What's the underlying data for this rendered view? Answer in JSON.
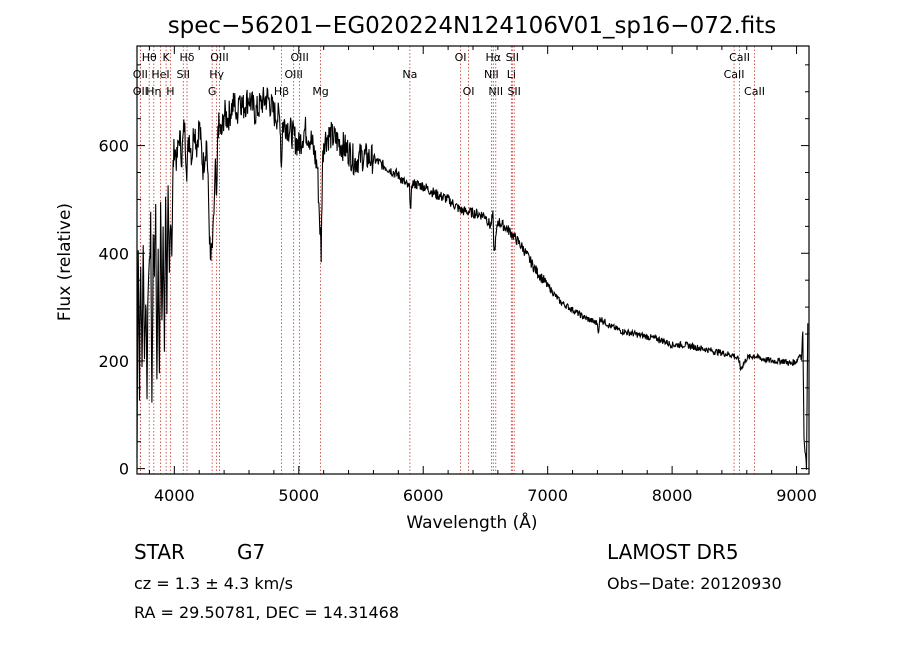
{
  "chart_data": {
    "type": "line",
    "title": "spec−56201−EG020224N124106V01_sp16−072.fits",
    "xlabel": "Wavelength (Å)",
    "ylabel": "Flux (relative)",
    "xlim": [
      3700,
      9100
    ],
    "ylim": [
      -10,
      785
    ],
    "xticks": [
      4000,
      5000,
      6000,
      7000,
      8000,
      9000
    ],
    "yticks": [
      0,
      200,
      400,
      600
    ],
    "grid": false,
    "line_color": "#000000",
    "marker_color": "#c0392b",
    "series": [
      {
        "x": [
          3700,
          3710,
          3720,
          3730,
          3740,
          3750,
          3760,
          3770,
          3780,
          3790,
          3800,
          3810,
          3820,
          3830,
          3840,
          3850,
          3860,
          3870,
          3880,
          3890,
          3900,
          3910,
          3920,
          3930,
          3940,
          3950,
          3960,
          3970,
          3980,
          3990,
          4000,
          4020,
          4040,
          4060,
          4080,
          4100,
          4120,
          4140,
          4160,
          4180,
          4200,
          4230,
          4260,
          4290,
          4310,
          4330,
          4340,
          4350,
          4380,
          4400,
          4430,
          4460,
          4490,
          4500,
          4520,
          4550,
          4600,
          4650,
          4700,
          4750,
          4800,
          4850,
          4860,
          4870,
          4900,
          4950,
          5000,
          5050,
          5100,
          5150,
          5170,
          5180,
          5190,
          5200,
          5250,
          5300,
          5350,
          5400,
          5450,
          5500,
          5600,
          5700,
          5800,
          5890,
          5900,
          5910,
          6000,
          6100,
          6200,
          6300,
          6400,
          6500,
          6540,
          6560,
          6570,
          6600,
          6700,
          6800,
          6900,
          7000,
          7100,
          7200,
          7300,
          7400,
          7410,
          7420,
          7500,
          7600,
          7700,
          7800,
          7900,
          8000,
          8100,
          8200,
          8300,
          8400,
          8500,
          8540,
          8550,
          8600,
          8660,
          8700,
          8800,
          8900,
          8950,
          9000,
          9030,
          9040,
          9050,
          9060,
          9080,
          9090
        ],
        "y": [
          20,
          420,
          150,
          380,
          180,
          430,
          200,
          330,
          150,
          350,
          380,
          450,
          120,
          420,
          380,
          470,
          160,
          400,
          180,
          500,
          250,
          450,
          220,
          520,
          300,
          500,
          350,
          480,
          410,
          560,
          600,
          570,
          620,
          580,
          640,
          560,
          620,
          580,
          640,
          600,
          640,
          560,
          610,
          380,
          420,
          560,
          480,
          640,
          620,
          660,
          650,
          670,
          680,
          640,
          700,
          670,
          690,
          660,
          680,
          690,
          660,
          650,
          560,
          640,
          640,
          620,
          600,
          630,
          610,
          560,
          450,
          400,
          560,
          610,
          620,
          610,
          600,
          590,
          570,
          580,
          575,
          560,
          545,
          520,
          480,
          530,
          525,
          510,
          500,
          480,
          475,
          470,
          450,
          470,
          400,
          460,
          440,
          410,
          370,
          340,
          310,
          295,
          280,
          270,
          250,
          280,
          265,
          255,
          250,
          245,
          240,
          230,
          230,
          225,
          220,
          215,
          210,
          200,
          185,
          205,
          210,
          205,
          200,
          200,
          195,
          200,
          215,
          200,
          260,
          60,
          0,
          270
        ]
      }
    ],
    "line_markers": [
      {
        "wl": 3727,
        "label": "OII",
        "row": 2
      },
      {
        "wl": 3727,
        "label": "OII",
        "row": 3
      },
      {
        "wl": 3798,
        "label": "Hθ",
        "row": 1
      },
      {
        "wl": 3835,
        "label": "Hη",
        "row": 3
      },
      {
        "wl": 3889,
        "label": "HeI",
        "row": 2
      },
      {
        "wl": 3934,
        "label": "K",
        "row": 1
      },
      {
        "wl": 3968,
        "label": "H",
        "row": 3
      },
      {
        "wl": 4072,
        "label": "SII",
        "row": 2
      },
      {
        "wl": 4102,
        "label": "Hδ",
        "row": 1
      },
      {
        "wl": 4304,
        "label": "G",
        "row": 3
      },
      {
        "wl": 4340,
        "label": "Hγ",
        "row": 2
      },
      {
        "wl": 4363,
        "label": "OIII",
        "row": 1
      },
      {
        "wl": 4861,
        "label": "Hβ",
        "row": 3
      },
      {
        "wl": 4959,
        "label": "OIII",
        "row": 2
      },
      {
        "wl": 5007,
        "label": "OIII",
        "row": 1
      },
      {
        "wl": 5175,
        "label": "Mg",
        "row": 3
      },
      {
        "wl": 5893,
        "label": "Na",
        "row": 2
      },
      {
        "wl": 6300,
        "label": "OI",
        "row": 1
      },
      {
        "wl": 6364,
        "label": "OI",
        "row": 3
      },
      {
        "wl": 6548,
        "label": "NII",
        "row": 2
      },
      {
        "wl": 6563,
        "label": "Hα",
        "row": 1
      },
      {
        "wl": 6583,
        "label": "NII",
        "row": 3
      },
      {
        "wl": 6708,
        "label": "Li",
        "row": 2
      },
      {
        "wl": 6716,
        "label": "SII",
        "row": 1
      },
      {
        "wl": 6731,
        "label": "SII",
        "row": 3
      },
      {
        "wl": 8498,
        "label": "CaII",
        "row": 2
      },
      {
        "wl": 8542,
        "label": "CaII",
        "row": 1
      },
      {
        "wl": 8662,
        "label": "CaII",
        "row": 3
      }
    ]
  },
  "info": {
    "class": "STAR",
    "subclass": "G7",
    "survey": "LAMOST DR5",
    "redshift": "cz = 1.3 ± 4.3 km/s",
    "obs_date": "Obs−Date: 20120930",
    "coords": "RA =  29.50781, DEC =  14.31468"
  }
}
